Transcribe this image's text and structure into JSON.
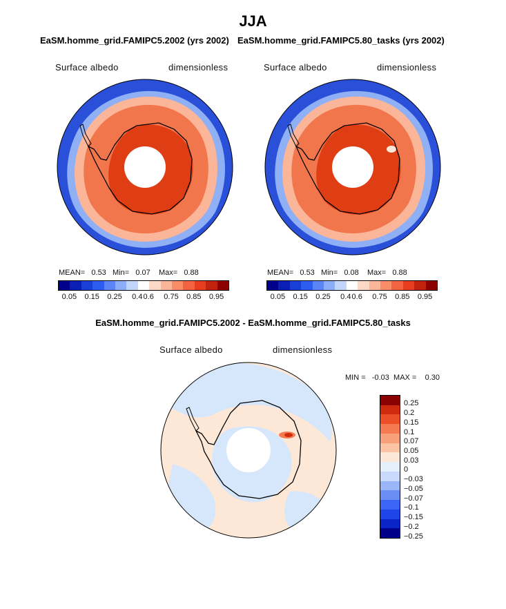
{
  "page": {
    "title": "JJA"
  },
  "panels": {
    "left": {
      "case_title": "EaSM.homme_grid.FAMIPC5.2002 (yrs 2002)",
      "variable": "Surface albedo",
      "units": "dimensionless",
      "stats": {
        "mean_label": "MEAN=",
        "mean": "0.53",
        "min_label": "Min=",
        "min": "0.07",
        "max_label": "Max=",
        "max": "0.88"
      }
    },
    "right": {
      "case_title": "EaSM.homme_grid.FAMIPC5.80_tasks (yrs 2002)",
      "variable": "Surface albedo",
      "units": "dimensionless",
      "stats": {
        "mean_label": "MEAN=",
        "mean": "0.53",
        "min_label": "Min=",
        "min": "0.08",
        "max_label": "Max=",
        "max": "0.88"
      }
    },
    "diff": {
      "case_title": "EaSM.homme_grid.FAMIPC5.2002 - EaSM.homme_grid.FAMIPC5.80_tasks",
      "variable": "Surface albedo",
      "units": "dimensionless",
      "stats": {
        "min_label": "MIN =",
        "min": "-0.03",
        "max_label": "MAX =",
        "max": "0.30"
      }
    }
  },
  "colors": {
    "abs_scale": [
      "#00008b",
      "#0a1fb4",
      "#1a3fd6",
      "#2d5cf0",
      "#5b84f5",
      "#8cadf8",
      "#c2d6fb",
      "#ffffff",
      "#fcd9c6",
      "#fbb69a",
      "#f88d68",
      "#f2633f",
      "#e63e1f",
      "#c2230f",
      "#8b0000"
    ],
    "diff_scale": [
      "#00008b",
      "#0a24c8",
      "#1e45e8",
      "#3b66f5",
      "#6b8ef5",
      "#9ab5f8",
      "#c8d9fb",
      "#e6f0fd",
      "#fde8d8",
      "#fbc4a4",
      "#f8a07a",
      "#f57a52",
      "#ec4e27",
      "#cf2b0e",
      "#8b0000"
    ],
    "ocean_deep": "#2a4fd8",
    "coast_light": "#8fb0f5",
    "ice_mid": "#f2764c",
    "ice_core": "#df3e14",
    "diff_neg": "#d6e6fb",
    "diff_pos": "#fde8d8"
  },
  "chart_data": [
    {
      "type": "heatmap",
      "title": "EaSM.homme_grid.FAMIPC5.2002 (yrs 2002)",
      "projection": "south polar stereographic",
      "variable": "Surface albedo",
      "units": "dimensionless",
      "mean": 0.53,
      "min": 0.07,
      "max": 0.88,
      "colorbar": {
        "levels": [
          0.05,
          0.1,
          0.15,
          0.2,
          0.25,
          0.3,
          0.4,
          0.5,
          0.6,
          0.7,
          0.75,
          0.8,
          0.85,
          0.9,
          0.95
        ],
        "tick_labels": [
          "0.05",
          "0.15",
          "0.25",
          "0.4",
          "0.6",
          "0.75",
          "0.85",
          "0.95"
        ]
      }
    },
    {
      "type": "heatmap",
      "title": "EaSM.homme_grid.FAMIPC5.80_tasks (yrs 2002)",
      "projection": "south polar stereographic",
      "variable": "Surface albedo",
      "units": "dimensionless",
      "mean": 0.53,
      "min": 0.08,
      "max": 0.88,
      "colorbar": {
        "levels": [
          0.05,
          0.1,
          0.15,
          0.2,
          0.25,
          0.3,
          0.4,
          0.5,
          0.6,
          0.7,
          0.75,
          0.8,
          0.85,
          0.9,
          0.95
        ],
        "tick_labels": [
          "0.05",
          "0.15",
          "0.25",
          "0.4",
          "0.6",
          "0.75",
          "0.85",
          "0.95"
        ]
      }
    },
    {
      "type": "heatmap",
      "title": "EaSM.homme_grid.FAMIPC5.2002 - EaSM.homme_grid.FAMIPC5.80_tasks",
      "projection": "south polar stereographic",
      "variable": "Surface albedo",
      "units": "dimensionless",
      "min": -0.03,
      "max": 0.3,
      "colorbar": {
        "tick_labels": [
          "0.25",
          "0.2",
          "0.15",
          "0.1",
          "0.07",
          "0.05",
          "0.03",
          "0",
          "−0.03",
          "−0.05",
          "−0.07",
          "−0.1",
          "−0.15",
          "−0.2",
          "−0.25"
        ]
      }
    }
  ]
}
